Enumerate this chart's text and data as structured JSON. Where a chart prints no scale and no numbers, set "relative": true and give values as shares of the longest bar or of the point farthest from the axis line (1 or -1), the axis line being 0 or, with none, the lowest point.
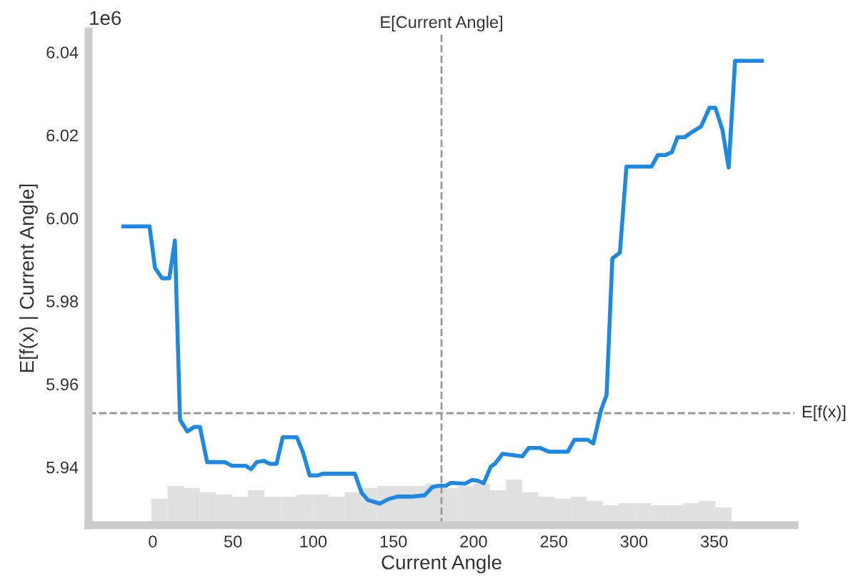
{
  "chart_data": [
    {
      "type": "line",
      "xlabel": "Current Angle",
      "ylabel": "E[f(x) | Current Angle]",
      "annotations": [
        "1e6"
      ],
      "x": [
        -18.3,
        -2,
        1.4,
        5.8,
        10.3,
        13.8,
        17,
        21.5,
        26,
        29.4,
        33.9,
        45,
        49.5,
        58,
        61.3,
        64.8,
        69.2,
        73,
        77.2,
        81,
        89.8,
        93.7,
        97.8,
        103,
        106,
        126,
        130.2,
        134,
        141.5,
        147,
        152.6,
        162,
        169.4,
        174.4,
        178.3,
        182.7,
        185.7,
        194.5,
        199,
        202.7,
        206.3,
        210.7,
        213.6,
        218,
        230.4,
        234.3,
        241.6,
        247,
        258.7,
        262.9,
        271.1,
        274.6,
        279.4,
        282.9,
        286.5,
        291.2,
        295.3,
        310.9,
        314.8,
        319.7,
        323.6,
        327.1,
        331.6,
        336,
        341.8,
        347.1,
        350.7,
        355.1,
        359,
        363,
        379.6
      ],
      "series": [
        {
          "color": "#1e88e5",
          "values": [
            5.998,
            5.998,
            5.988,
            5.9855,
            5.9855,
            5.9946,
            5.9514,
            5.9486,
            5.9497,
            5.9497,
            5.9412,
            5.9412,
            5.9403,
            5.9403,
            5.9395,
            5.9412,
            5.9415,
            5.9408,
            5.9408,
            5.9472,
            5.9472,
            5.9435,
            5.938,
            5.938,
            5.9384,
            5.9384,
            5.9338,
            5.9321,
            5.9312,
            5.9323,
            5.9329,
            5.9329,
            5.9332,
            5.9352,
            5.9355,
            5.9355,
            5.9362,
            5.936,
            5.9369,
            5.9367,
            5.9361,
            5.9401,
            5.9409,
            5.9432,
            5.9426,
            5.9446,
            5.9446,
            5.9437,
            5.9437,
            5.9466,
            5.9466,
            5.9457,
            5.9537,
            5.9574,
            5.9903,
            5.9917,
            6.0124,
            6.0124,
            6.0152,
            6.0152,
            6.0159,
            6.0195,
            6.0195,
            6.0207,
            6.0221,
            6.0266,
            6.0266,
            6.0213,
            6.0122,
            6.0379,
            6.0379
          ]
        }
      ],
      "xlim": [
        -40,
        400
      ],
      "xticks": [
        0,
        50,
        100,
        150,
        200,
        250,
        300,
        350
      ],
      "ylim": [
        5.926,
        6.045
      ],
      "yticks": [
        5.94,
        5.96,
        5.98,
        {
          "value": 6,
          "label": "6.00"
        },
        6.02,
        6.04
      ],
      "ref_lines": [
        {
          "axis": "x",
          "value": 180,
          "label": "E[Current Angle]",
          "color": "#999999",
          "line_style": "dashed"
        },
        {
          "axis": "y",
          "value": 5.953,
          "label": "E[f(x)]",
          "color": "#999999",
          "line_style": "dashed"
        }
      ],
      "grid": false,
      "legend": false
    },
    {
      "type": "bar",
      "relative": true,
      "color": "#cccccc",
      "categories": [
        null,
        null,
        null,
        null,
        null,
        null,
        null,
        null,
        null,
        null,
        null,
        null,
        null,
        null,
        null,
        null,
        null,
        null,
        null,
        null,
        null,
        null,
        null,
        null,
        null,
        null,
        null,
        null,
        null,
        null,
        null,
        null,
        null,
        null,
        null,
        null
      ],
      "values": [
        0.55,
        0.85,
        0.8,
        0.7,
        0.65,
        0.6,
        0.75,
        0.6,
        0.6,
        0.65,
        0.65,
        0.6,
        0.7,
        0.8,
        0.85,
        0.85,
        0.85,
        0.9,
        0.8,
        0.85,
        0.9,
        0.75,
        1.0,
        0.7,
        0.6,
        0.55,
        0.6,
        0.5,
        0.4,
        0.45,
        0.45,
        0.4,
        0.4,
        0.45,
        0.5,
        0.35
      ]
    }
  ]
}
